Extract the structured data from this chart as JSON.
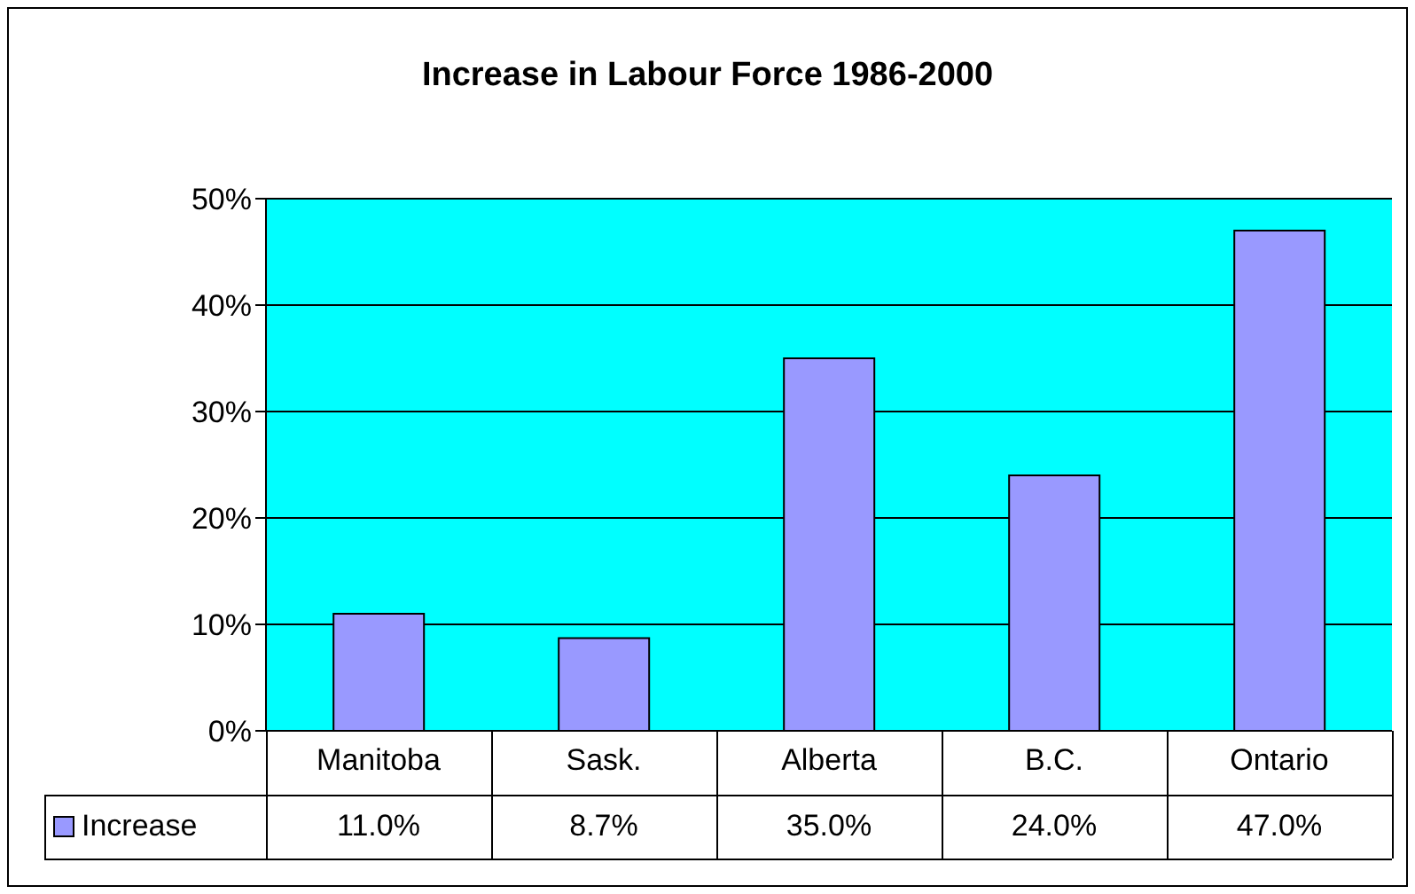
{
  "chart_data": {
    "type": "bar",
    "title": "Increase in Labour Force 1986-2000",
    "categories": [
      "Manitoba",
      "Sask.",
      "Alberta",
      "B.C.",
      "Ontario"
    ],
    "series": [
      {
        "name": "Increase",
        "color": "#9999ff",
        "values": [
          11.0,
          8.7,
          35.0,
          24.0,
          47.0
        ],
        "value_labels": [
          "11.0%",
          "8.7%",
          "35.0%",
          "24.0%",
          "47.0%"
        ]
      }
    ],
    "ylim": [
      0,
      50
    ],
    "yticks": [
      {
        "value": 0,
        "label": "0%"
      },
      {
        "value": 10,
        "label": "10%"
      },
      {
        "value": 20,
        "label": "20%"
      },
      {
        "value": 30,
        "label": "30%"
      },
      {
        "value": 40,
        "label": "40%"
      },
      {
        "value": 50,
        "label": "50%"
      }
    ],
    "grid": "y",
    "legend": "bottom"
  }
}
